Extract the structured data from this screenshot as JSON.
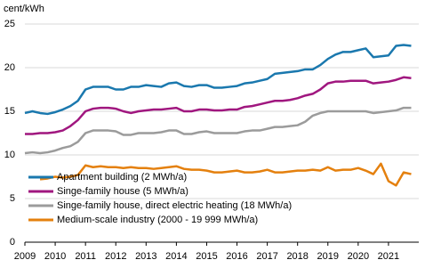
{
  "chart_data": {
    "type": "line",
    "y_label": "cent/kWh",
    "x": [
      2009,
      2009.25,
      2009.5,
      2009.75,
      2010,
      2010.25,
      2010.5,
      2010.75,
      2011,
      2011.25,
      2011.5,
      2011.75,
      2012,
      2012.25,
      2012.5,
      2012.75,
      2013,
      2013.25,
      2013.5,
      2013.75,
      2014,
      2014.25,
      2014.5,
      2014.75,
      2015,
      2015.25,
      2015.5,
      2015.75,
      2016,
      2016.25,
      2016.5,
      2016.75,
      2017,
      2017.25,
      2017.5,
      2017.75,
      2018,
      2018.25,
      2018.5,
      2018.75,
      2019,
      2019.25,
      2019.5,
      2019.75,
      2020,
      2020.25,
      2020.5,
      2020.75,
      2021,
      2021.25,
      2021.5,
      2021.75
    ],
    "series": [
      {
        "name": "Apartment building (2 MWh/a)",
        "color": "#1a78ae",
        "values": [
          14.8,
          15.0,
          14.8,
          14.7,
          14.9,
          15.2,
          15.6,
          16.2,
          17.5,
          17.8,
          17.8,
          17.8,
          17.5,
          17.5,
          17.8,
          17.8,
          18.0,
          17.9,
          17.8,
          18.2,
          18.3,
          17.9,
          17.8,
          18.0,
          18.0,
          17.7,
          17.7,
          17.8,
          17.9,
          18.2,
          18.3,
          18.5,
          18.7,
          19.3,
          19.4,
          19.5,
          19.6,
          19.8,
          19.8,
          20.3,
          21.0,
          21.5,
          21.8,
          21.8,
          22.0,
          22.2,
          21.2,
          21.3,
          21.4,
          22.5,
          22.6,
          22.5
        ]
      },
      {
        "name": "Singe-family house (5 MWh/a)",
        "color": "#a0177f",
        "values": [
          12.4,
          12.4,
          12.5,
          12.5,
          12.6,
          12.8,
          13.3,
          14.0,
          15.0,
          15.3,
          15.4,
          15.4,
          15.3,
          15.0,
          14.8,
          15.0,
          15.1,
          15.2,
          15.2,
          15.3,
          15.4,
          15.0,
          15.0,
          15.2,
          15.2,
          15.1,
          15.1,
          15.2,
          15.2,
          15.5,
          15.6,
          15.8,
          16.0,
          16.2,
          16.2,
          16.3,
          16.5,
          16.8,
          17.0,
          17.5,
          18.2,
          18.4,
          18.4,
          18.5,
          18.5,
          18.5,
          18.2,
          18.3,
          18.4,
          18.6,
          18.9,
          18.8
        ]
      },
      {
        "name": "Singe-family house, direct electric heating (18 MWh/a)",
        "color": "#9b9b9b",
        "values": [
          10.2,
          10.3,
          10.2,
          10.3,
          10.5,
          10.8,
          11.0,
          11.5,
          12.5,
          12.8,
          12.8,
          12.8,
          12.7,
          12.3,
          12.3,
          12.5,
          12.5,
          12.5,
          12.6,
          12.8,
          12.8,
          12.4,
          12.4,
          12.6,
          12.7,
          12.5,
          12.5,
          12.5,
          12.5,
          12.7,
          12.8,
          12.8,
          13.0,
          13.2,
          13.2,
          13.3,
          13.4,
          13.8,
          14.5,
          14.8,
          15.0,
          15.0,
          15.0,
          15.0,
          15.0,
          15.0,
          14.8,
          14.9,
          15.0,
          15.1,
          15.4,
          15.4
        ]
      },
      {
        "name": "Medium-scale industry (2000 - 19 999 MWh/a)",
        "color": "#e4800e",
        "values": [
          null,
          null,
          7.2,
          7.3,
          7.5,
          7.4,
          7.5,
          7.7,
          8.8,
          8.6,
          8.7,
          8.6,
          8.6,
          8.5,
          8.6,
          8.5,
          8.5,
          8.4,
          8.5,
          8.6,
          8.7,
          8.4,
          8.3,
          8.3,
          8.2,
          8.0,
          8.0,
          8.1,
          8.2,
          8.0,
          8.0,
          8.1,
          8.3,
          8.0,
          8.0,
          8.1,
          8.2,
          8.2,
          8.3,
          8.2,
          8.6,
          8.2,
          8.3,
          8.3,
          8.5,
          8.2,
          7.8,
          9.0,
          7.0,
          6.5,
          8.0,
          7.8
        ]
      }
    ],
    "xlim": [
      2009,
      2022
    ],
    "xticks": [
      2009,
      2010,
      2011,
      2012,
      2013,
      2014,
      2015,
      2016,
      2017,
      2018,
      2019,
      2020,
      2021
    ],
    "ylim": [
      0,
      25
    ],
    "yticks": [
      0,
      5,
      10,
      15,
      20,
      25
    ],
    "grid": true,
    "legend": "lower-left"
  }
}
